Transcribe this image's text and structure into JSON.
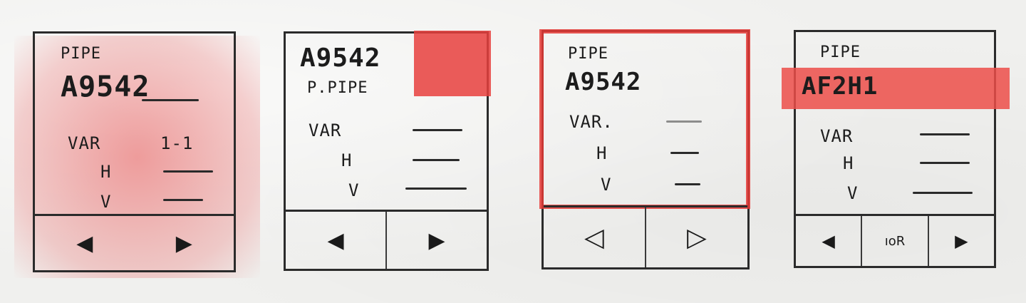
{
  "sketches": [
    {
      "pipe_label": "PIPE",
      "pipe_id": "A9542",
      "var_label": "VAR",
      "var_value": "1-1",
      "h_label": "H",
      "v_label": "V",
      "nav": [
        "◀",
        "▶"
      ]
    },
    {
      "pipe_id": "A9542",
      "pipe_sub": "P.PIPE",
      "var_label": "VAR",
      "h_label": "H",
      "v_label": "V",
      "nav": [
        "◀",
        "▶"
      ]
    },
    {
      "pipe_label": "PIPE",
      "pipe_id": "A9542",
      "var_label": "VAR.",
      "h_label": "H",
      "v_label": "V",
      "nav": [
        "◁",
        "▷"
      ]
    },
    {
      "pipe_label": "PIPE",
      "pipe_id": "AF2H1",
      "var_label": "VAR",
      "h_label": "H",
      "v_label": "V",
      "nav": [
        "◀",
        "ıoR",
        "▶"
      ]
    }
  ],
  "colors": {
    "ink": "#2b2b2b",
    "highlight": "#e8403d",
    "paper": "#f0f0ee"
  }
}
